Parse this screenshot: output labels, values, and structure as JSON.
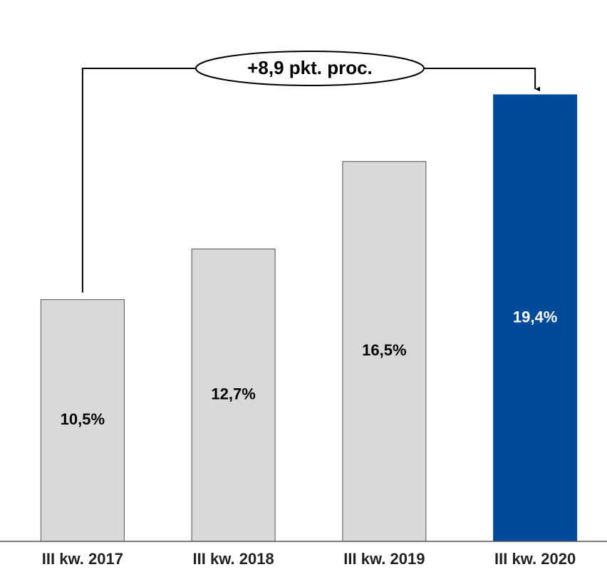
{
  "chart_data": {
    "type": "bar",
    "categories": [
      "III kw. 2017",
      "III kw. 2018",
      "III kw. 2019",
      "III kw. 2020"
    ],
    "values": [
      10.5,
      12.7,
      16.5,
      19.4
    ],
    "value_labels": [
      "10,5%",
      "12,7%",
      "16,5%",
      "19,4%"
    ],
    "colors": [
      "#d9d9d9",
      "#d9d9d9",
      "#d9d9d9",
      "#004a99"
    ],
    "annotation": "+8,9 pkt. proc."
  }
}
